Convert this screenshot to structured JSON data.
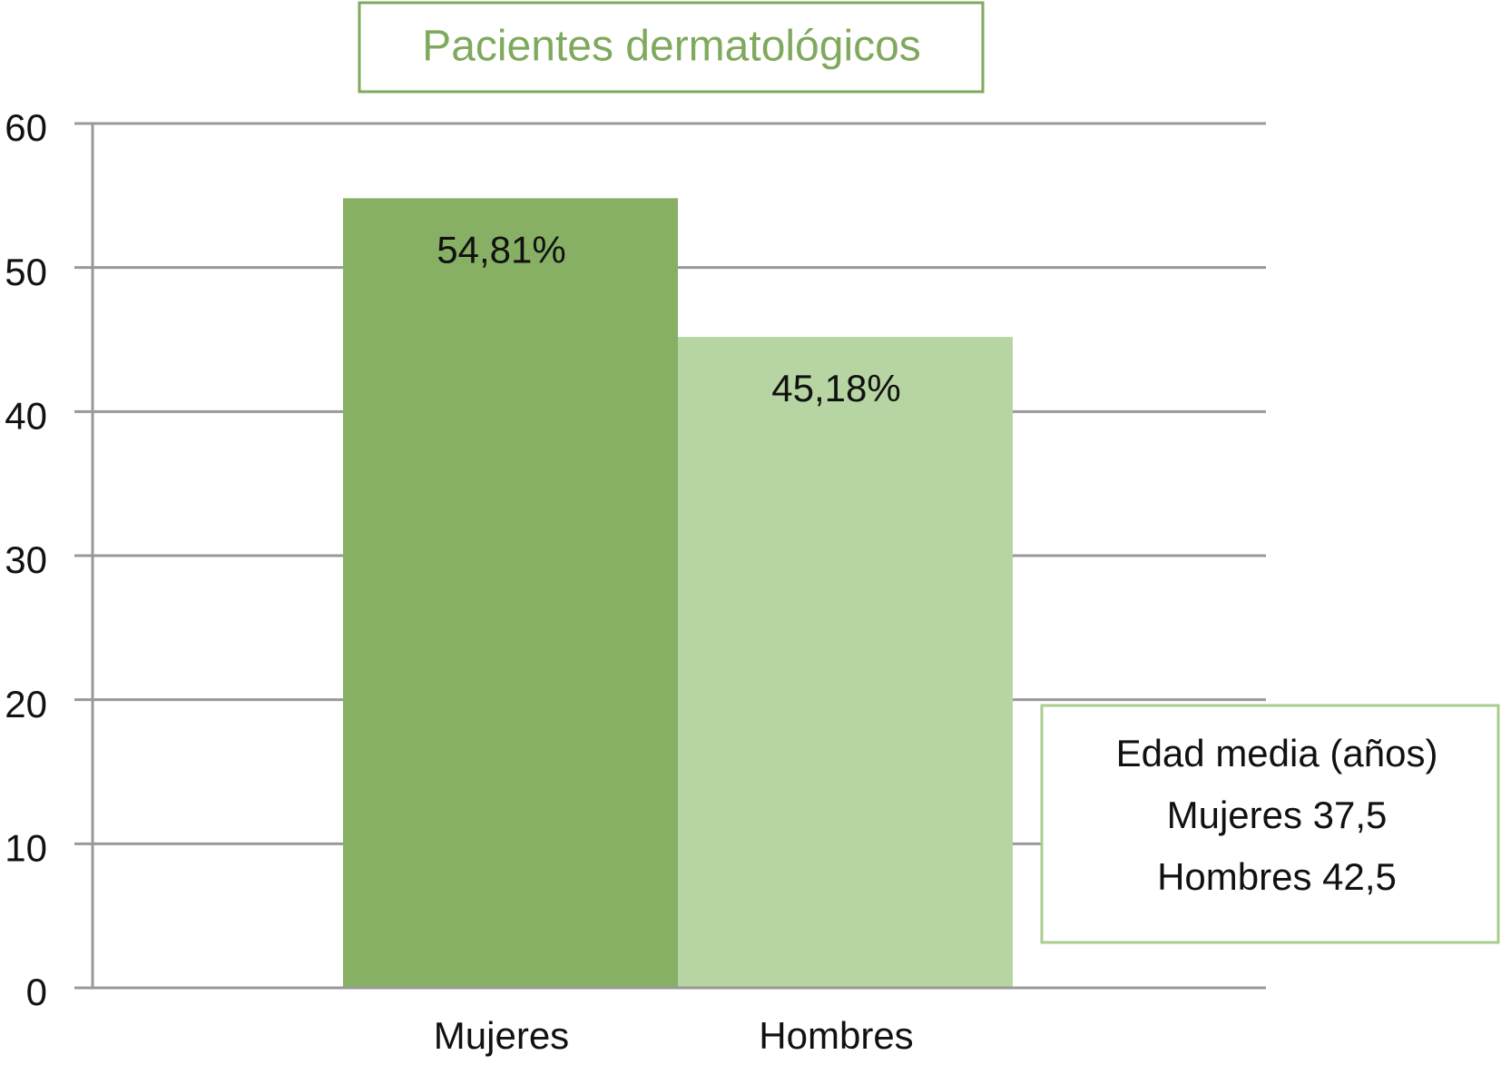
{
  "chart_data": {
    "type": "bar",
    "title": "Pacientes dermatológicos",
    "categories": [
      "Mujeres",
      "Hombres"
    ],
    "values": [
      54.81,
      45.18
    ],
    "value_labels": [
      "54,81%",
      "45,18%"
    ],
    "colors": [
      "#87b065",
      "#b7d5a3"
    ],
    "ylim": [
      0,
      60
    ],
    "yticks": [
      0,
      10,
      20,
      30,
      40,
      50,
      60
    ],
    "grid": true,
    "annotation": [
      "Edad media (años)",
      "Mujeres 37,5",
      "Hombres 42,5"
    ]
  }
}
